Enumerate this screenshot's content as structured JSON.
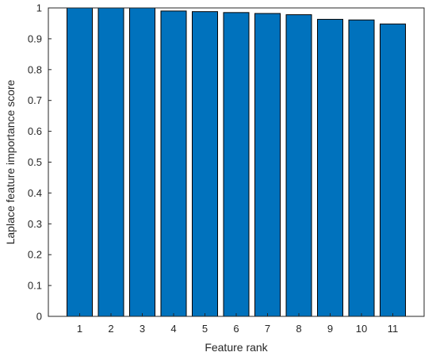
{
  "chart_data": {
    "type": "bar",
    "categories": [
      "1",
      "2",
      "3",
      "4",
      "5",
      "6",
      "7",
      "8",
      "9",
      "10",
      "11"
    ],
    "values": [
      1.0,
      1.0,
      1.0,
      0.99,
      0.988,
      0.985,
      0.982,
      0.978,
      0.963,
      0.961,
      0.948
    ],
    "xlabel": "Feature rank",
    "ylabel": "Laplace feature importance score",
    "ylim": [
      0,
      1
    ],
    "yticks": [
      "0",
      "0.1",
      "0.2",
      "0.3",
      "0.4",
      "0.5",
      "0.6",
      "0.7",
      "0.8",
      "0.9",
      "1"
    ],
    "grid": false,
    "bar_color": "#0072BD",
    "edge_color": "#000000"
  }
}
